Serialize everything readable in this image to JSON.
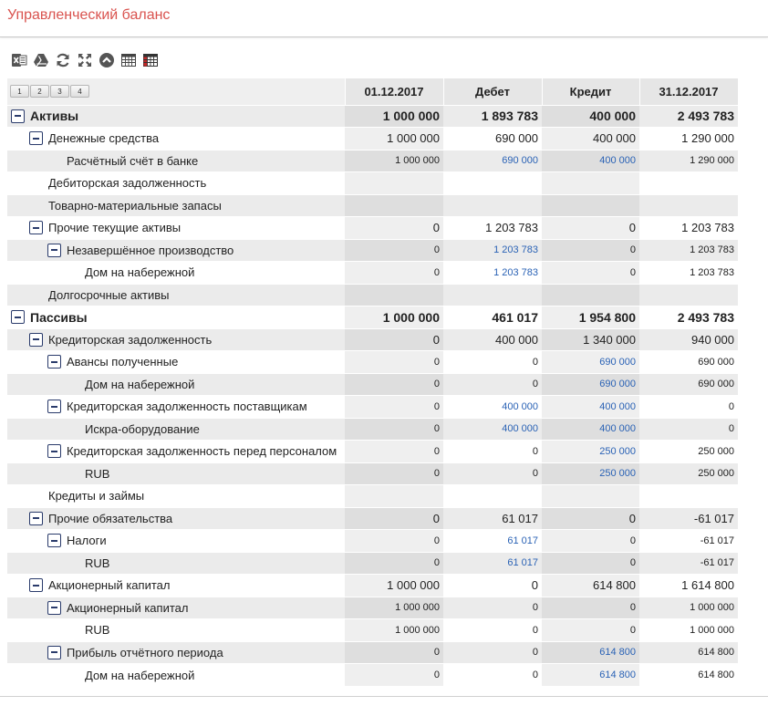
{
  "page": {
    "title": "Управленческий баланс"
  },
  "toolbar": {
    "icons": [
      "excel-icon",
      "google-drive-icon",
      "refresh-icon",
      "fullscreen-icon",
      "collapse-up-icon",
      "table-icon",
      "pivot-table-icon"
    ]
  },
  "levels": [
    "1",
    "2",
    "3",
    "4"
  ],
  "columns": [
    "01.12.2017",
    "Дебет",
    "Кредит",
    "31.12.2017"
  ],
  "colors": {
    "title": "#d9534f",
    "link": "#2a62b5",
    "toggle": "#2a3b6b"
  },
  "rows": [
    {
      "name": "Активы",
      "level": 0,
      "toggle": true,
      "values": [
        "1 000 000",
        "1 893 783",
        "400 000",
        "2 493 783"
      ],
      "links": [
        false,
        false,
        false,
        false
      ]
    },
    {
      "name": "Денежные средства",
      "level": 1,
      "toggle": true,
      "values": [
        "1 000 000",
        "690 000",
        "400 000",
        "1 290 000"
      ],
      "links": [
        false,
        false,
        false,
        false
      ]
    },
    {
      "name": "Расчётный счёт в банке",
      "level": 2,
      "toggle": false,
      "values": [
        "1 000 000",
        "690 000",
        "400 000",
        "1 290 000"
      ],
      "links": [
        false,
        true,
        true,
        false
      ]
    },
    {
      "name": "Дебиторская задолженность",
      "level": 1,
      "toggle": false,
      "values": [
        "",
        "",
        "",
        ""
      ],
      "links": [
        false,
        false,
        false,
        false
      ]
    },
    {
      "name": "Товарно-материальные запасы",
      "level": 1,
      "toggle": false,
      "values": [
        "",
        "",
        "",
        ""
      ],
      "links": [
        false,
        false,
        false,
        false
      ]
    },
    {
      "name": "Прочие текущие активы",
      "level": 1,
      "toggle": true,
      "values": [
        "0",
        "1 203 783",
        "0",
        "1 203 783"
      ],
      "links": [
        false,
        false,
        false,
        false
      ]
    },
    {
      "name": "Незавершённое производство",
      "level": 2,
      "toggle": true,
      "values": [
        "0",
        "1 203 783",
        "0",
        "1 203 783"
      ],
      "links": [
        false,
        true,
        false,
        false
      ]
    },
    {
      "name": "Дом на набережной",
      "level": 3,
      "toggle": false,
      "values": [
        "0",
        "1 203 783",
        "0",
        "1 203 783"
      ],
      "links": [
        false,
        true,
        false,
        false
      ]
    },
    {
      "name": "Долгосрочные активы",
      "level": 1,
      "toggle": false,
      "values": [
        "",
        "",
        "",
        ""
      ],
      "links": [
        false,
        false,
        false,
        false
      ]
    },
    {
      "name": "Пассивы",
      "level": 0,
      "toggle": true,
      "values": [
        "1 000 000",
        "461 017",
        "1 954 800",
        "2 493 783"
      ],
      "links": [
        false,
        false,
        false,
        false
      ]
    },
    {
      "name": "Кредиторская задолженность",
      "level": 1,
      "toggle": true,
      "values": [
        "0",
        "400 000",
        "1 340 000",
        "940 000"
      ],
      "links": [
        false,
        false,
        false,
        false
      ]
    },
    {
      "name": "Авансы полученные",
      "level": 2,
      "toggle": true,
      "values": [
        "0",
        "0",
        "690 000",
        "690 000"
      ],
      "links": [
        false,
        false,
        true,
        false
      ]
    },
    {
      "name": "Дом на набережной",
      "level": 3,
      "toggle": false,
      "values": [
        "0",
        "0",
        "690 000",
        "690 000"
      ],
      "links": [
        false,
        false,
        true,
        false
      ]
    },
    {
      "name": "Кредиторская задолженность поставщикам",
      "level": 2,
      "toggle": true,
      "values": [
        "0",
        "400 000",
        "400 000",
        "0"
      ],
      "links": [
        false,
        true,
        true,
        false
      ]
    },
    {
      "name": "Искра-оборудование",
      "level": 3,
      "toggle": false,
      "values": [
        "0",
        "400 000",
        "400 000",
        "0"
      ],
      "links": [
        false,
        true,
        true,
        false
      ]
    },
    {
      "name": "Кредиторская задолженность перед персоналом",
      "level": 2,
      "toggle": true,
      "values": [
        "0",
        "0",
        "250 000",
        "250 000"
      ],
      "links": [
        false,
        false,
        true,
        false
      ]
    },
    {
      "name": "RUB",
      "level": 3,
      "toggle": false,
      "values": [
        "0",
        "0",
        "250 000",
        "250 000"
      ],
      "links": [
        false,
        false,
        true,
        false
      ]
    },
    {
      "name": "Кредиты и займы",
      "level": 1,
      "toggle": false,
      "values": [
        "",
        "",
        "",
        ""
      ],
      "links": [
        false,
        false,
        false,
        false
      ]
    },
    {
      "name": "Прочие обязательства",
      "level": 1,
      "toggle": true,
      "values": [
        "0",
        "61 017",
        "0",
        "-61 017"
      ],
      "links": [
        false,
        false,
        false,
        false
      ]
    },
    {
      "name": "Налоги",
      "level": 2,
      "toggle": true,
      "values": [
        "0",
        "61 017",
        "0",
        "-61 017"
      ],
      "links": [
        false,
        true,
        false,
        false
      ]
    },
    {
      "name": "RUB",
      "level": 3,
      "toggle": false,
      "values": [
        "0",
        "61 017",
        "0",
        "-61 017"
      ],
      "links": [
        false,
        true,
        false,
        false
      ]
    },
    {
      "name": "Акционерный капитал",
      "level": 1,
      "toggle": true,
      "values": [
        "1 000 000",
        "0",
        "614 800",
        "1 614 800"
      ],
      "links": [
        false,
        false,
        false,
        false
      ]
    },
    {
      "name": "Акционерный капитал",
      "level": 2,
      "toggle": true,
      "values": [
        "1 000 000",
        "0",
        "0",
        "1 000 000"
      ],
      "links": [
        false,
        false,
        false,
        false
      ]
    },
    {
      "name": "RUB",
      "level": 3,
      "toggle": false,
      "values": [
        "1 000 000",
        "0",
        "0",
        "1 000 000"
      ],
      "links": [
        false,
        false,
        false,
        false
      ]
    },
    {
      "name": "Прибыль отчётного периода",
      "level": 2,
      "toggle": true,
      "values": [
        "0",
        "0",
        "614 800",
        "614 800"
      ],
      "links": [
        false,
        false,
        true,
        false
      ]
    },
    {
      "name": "Дом на набережной",
      "level": 3,
      "toggle": false,
      "values": [
        "0",
        "0",
        "614 800",
        "614 800"
      ],
      "links": [
        false,
        false,
        true,
        false
      ]
    }
  ]
}
